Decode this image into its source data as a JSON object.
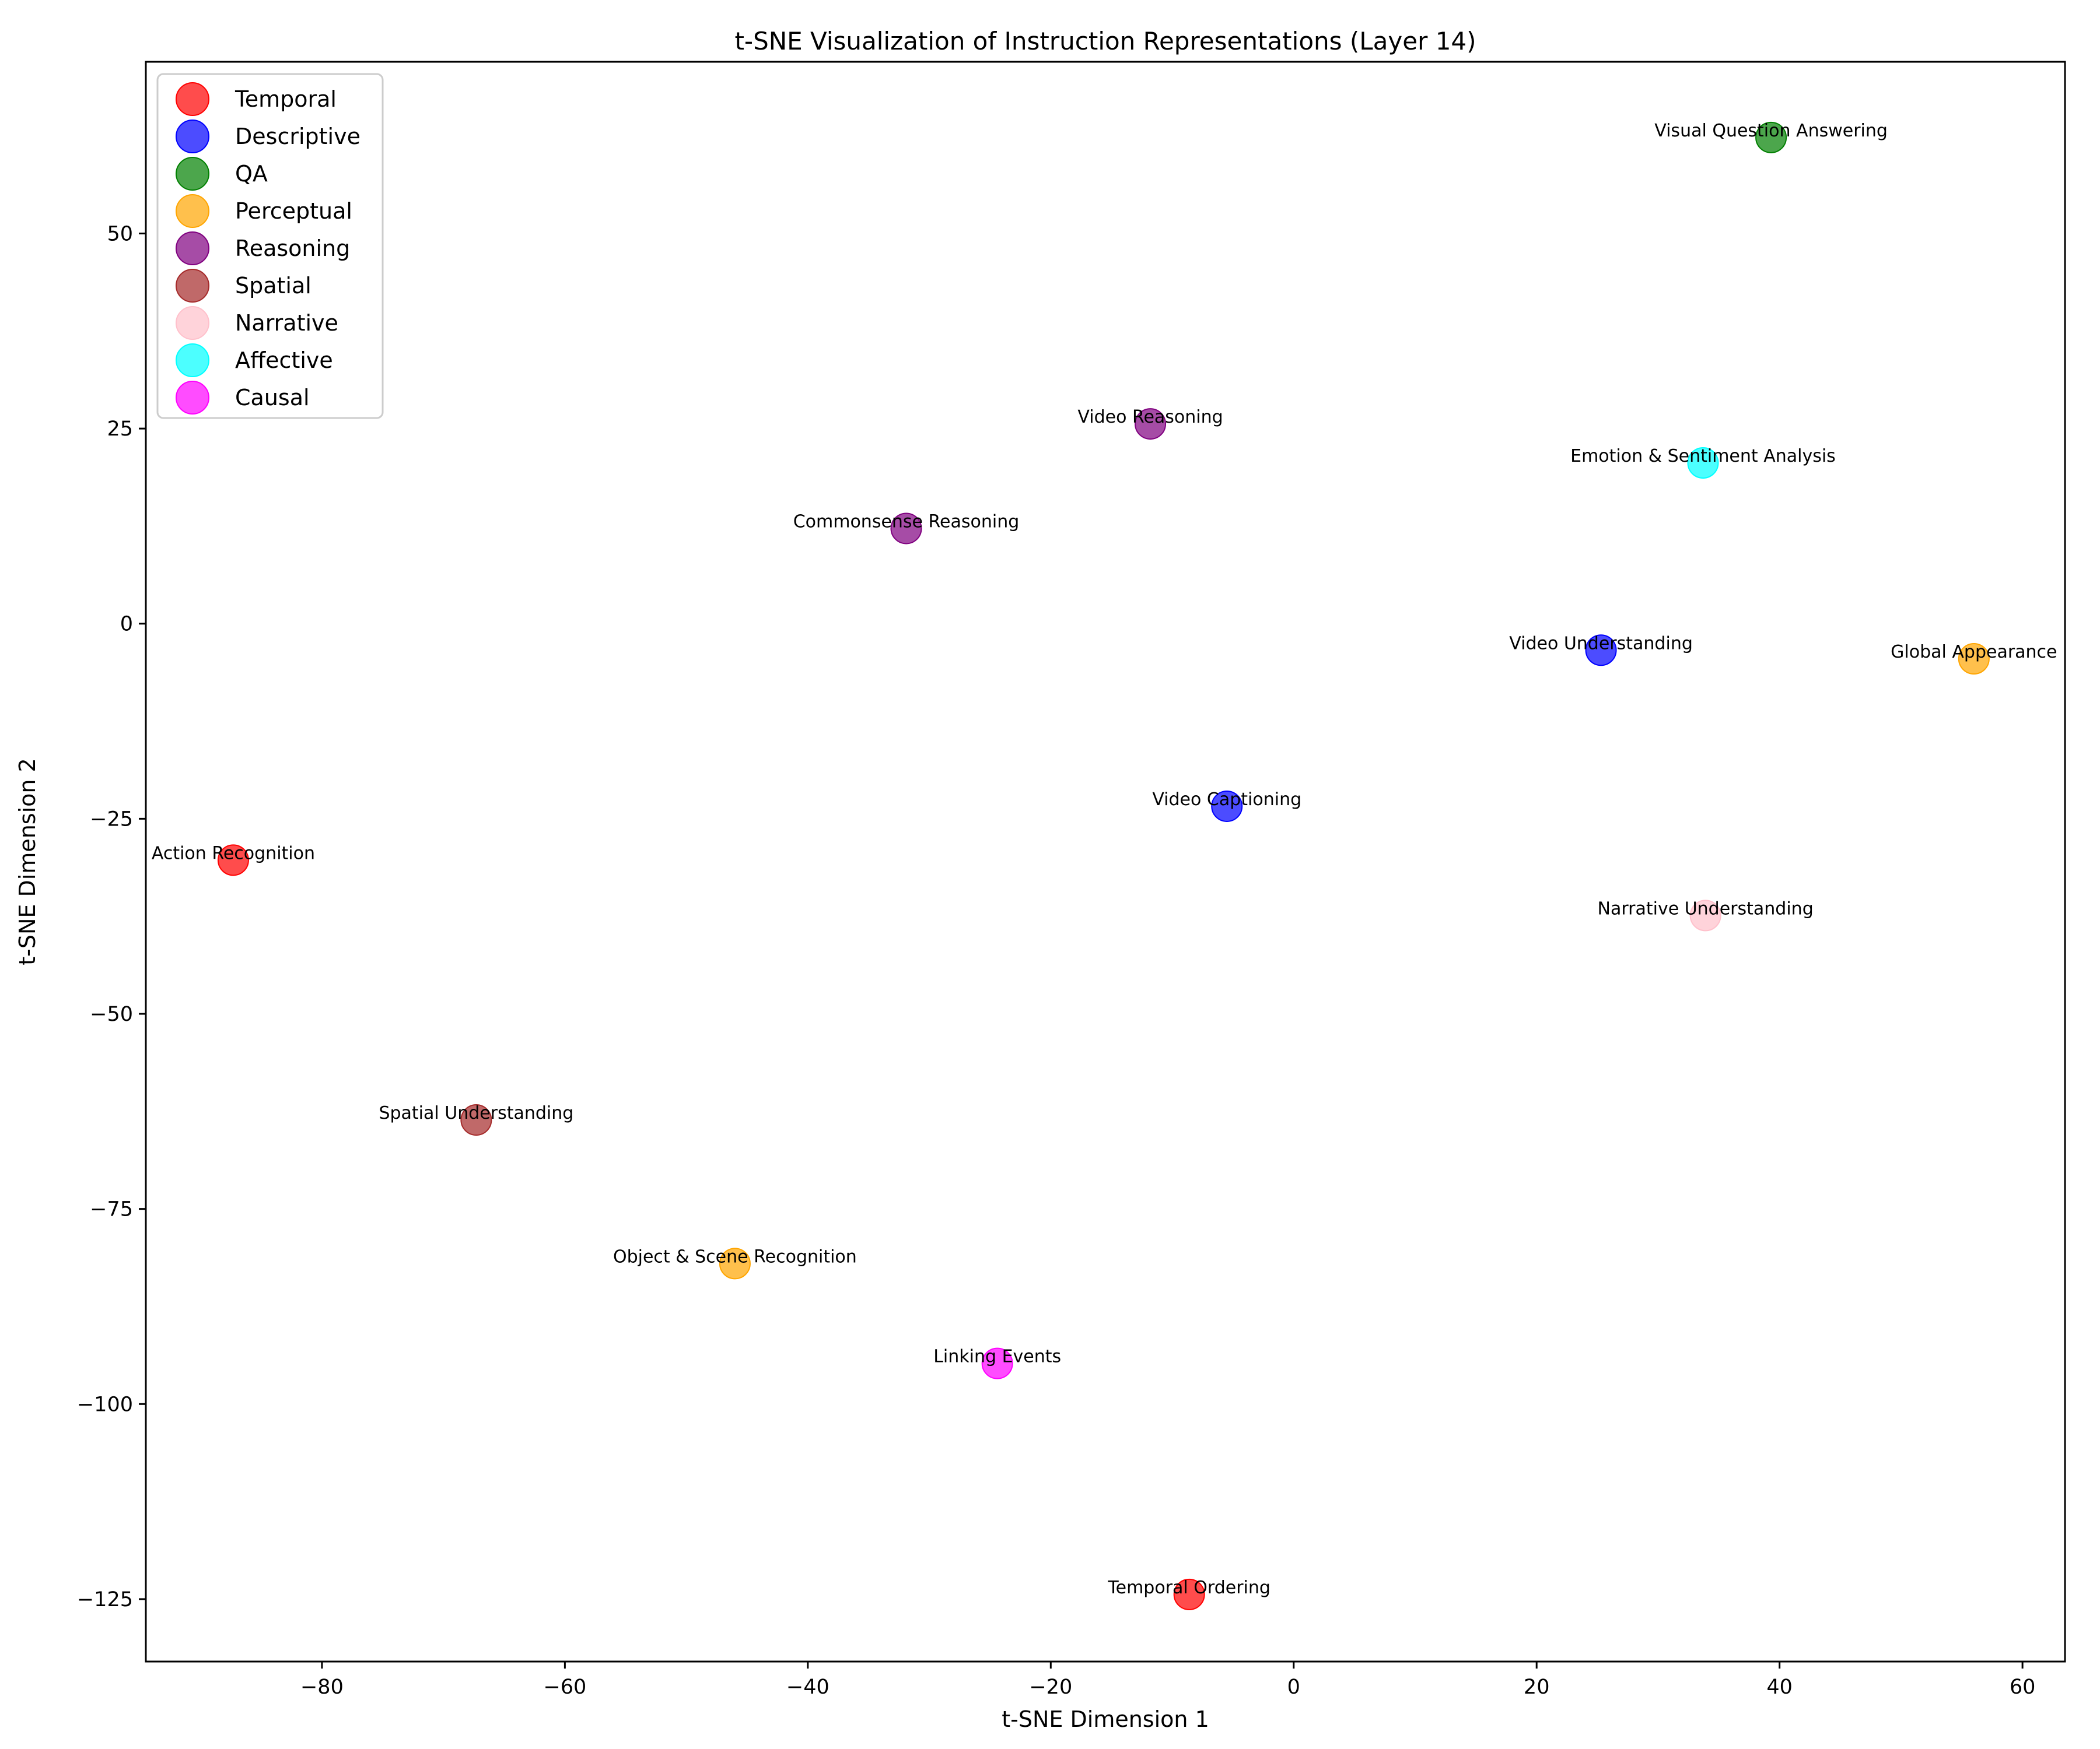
{
  "chart_data": {
    "type": "scatter",
    "title": "t-SNE Visualization of Instruction Representations (Layer 14)",
    "xlabel": "t-SNE Dimension 1",
    "ylabel": "t-SNE Dimension 2",
    "xlim": [
      -94.5,
      63.5
    ],
    "ylim": [
      -133,
      72
    ],
    "xticks": [
      -80,
      -60,
      -40,
      -20,
      0,
      20,
      40,
      60
    ],
    "yticks": [
      -125,
      -100,
      -75,
      -50,
      -25,
      0,
      25,
      50
    ],
    "xtick_labels": [
      "−80",
      "−60",
      "−40",
      "−20",
      "0",
      "20",
      "40",
      "60"
    ],
    "ytick_labels": [
      "−125",
      "−100",
      "−75",
      "−50",
      "−25",
      "0",
      "25",
      "50"
    ],
    "grid": false,
    "legend_position": "top-left",
    "series": [
      {
        "name": "Temporal",
        "color": "#ff0000",
        "points": [
          {
            "label": "Action Recognition",
            "x": -87.3,
            "y": -30.3
          },
          {
            "label": "Temporal Ordering",
            "x": -8.6,
            "y": -124.4
          }
        ]
      },
      {
        "name": "Descriptive",
        "color": "#0000ff",
        "points": [
          {
            "label": "Video Understanding",
            "x": 25.3,
            "y": -3.4
          },
          {
            "label": "Video Captioning",
            "x": -5.5,
            "y": -23.4
          }
        ]
      },
      {
        "name": "QA",
        "color": "#008000",
        "points": [
          {
            "label": "Visual Question Answering",
            "x": 39.3,
            "y": 62.3
          }
        ]
      },
      {
        "name": "Perceptual",
        "color": "#ffa500",
        "points": [
          {
            "label": "Global Appearance",
            "x": 56.0,
            "y": -4.5
          },
          {
            "label": "Object & Scene Recognition",
            "x": -46.0,
            "y": -82.0
          }
        ]
      },
      {
        "name": "Reasoning",
        "color": "#800080",
        "points": [
          {
            "label": "Video Reasoning",
            "x": -11.8,
            "y": 25.6
          },
          {
            "label": "Commonsense Reasoning",
            "x": -31.9,
            "y": 12.2
          }
        ]
      },
      {
        "name": "Spatial",
        "color": "#a52a2a",
        "points": [
          {
            "label": "Spatial Understanding",
            "x": -67.3,
            "y": -63.6
          }
        ]
      },
      {
        "name": "Narrative",
        "color": "#ffc0cb",
        "points": [
          {
            "label": "Narrative Understanding",
            "x": 33.9,
            "y": -37.4
          }
        ]
      },
      {
        "name": "Affective",
        "color": "#00ffff",
        "points": [
          {
            "label": "Emotion & Sentiment Analysis",
            "x": 33.7,
            "y": 20.6
          }
        ]
      },
      {
        "name": "Causal",
        "color": "#ff00ff",
        "points": [
          {
            "label": "Linking Events",
            "x": -24.4,
            "y": -94.8
          }
        ]
      }
    ]
  }
}
